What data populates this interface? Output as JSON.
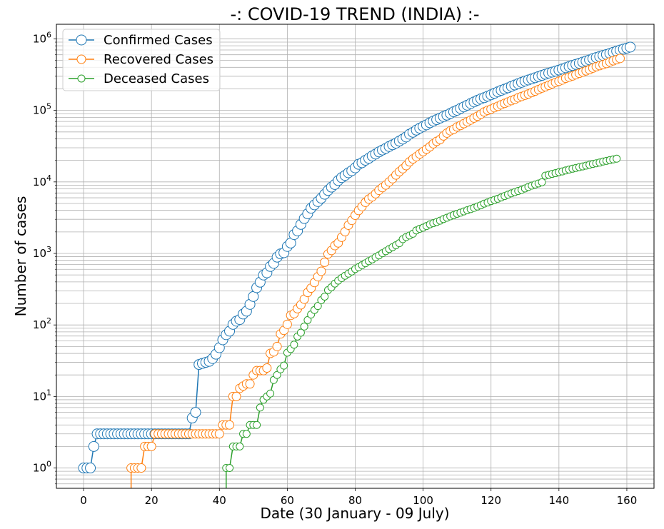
{
  "chart_data": {
    "type": "line",
    "title": "-: COVID-19 TREND (INDIA) :-",
    "xlabel": "Date (30 January - 09 July)",
    "ylabel": "Number of cases",
    "xlim": [
      -8,
      168
    ],
    "ylim": [
      0.52,
      1600000
    ],
    "yscale": "log",
    "grid": true,
    "grid_minor": true,
    "legend_position": "top-left",
    "x_ticks": [
      0,
      20,
      40,
      60,
      80,
      100,
      120,
      140,
      160
    ],
    "y_ticks": [
      {
        "value": 1,
        "label": "10^0"
      },
      {
        "value": 10,
        "label": "10^1"
      },
      {
        "value": 100,
        "label": "10^2"
      },
      {
        "value": 1000,
        "label": "10^3"
      },
      {
        "value": 10000,
        "label": "10^4"
      },
      {
        "value": 100000,
        "label": "10^5"
      },
      {
        "value": 1000000,
        "label": "10^6"
      }
    ],
    "series": [
      {
        "name": "Confirmed Cases",
        "color": "#1f77b4",
        "x_start": 0,
        "values": [
          1,
          1,
          1,
          2,
          3,
          3,
          3,
          3,
          3,
          3,
          3,
          3,
          3,
          3,
          3,
          3,
          3,
          3,
          3,
          3,
          3,
          3,
          3,
          3,
          3,
          3,
          3,
          3,
          3,
          3,
          3,
          3,
          5,
          6,
          28,
          29,
          30,
          31,
          34,
          39,
          48,
          62,
          73,
          82,
          102,
          113,
          119,
          142,
          156,
          194,
          250,
          332,
          396,
          499,
          536,
          657,
          727,
          887,
          987,
          1024,
          1251,
          1397,
          1834,
          2069,
          2547,
          3082,
          3588,
          4289,
          4778,
          5311,
          5916,
          6725,
          7598,
          8446,
          9205,
          10453,
          11487,
          12322,
          13430,
          14352,
          15722,
          17615,
          18539,
          20080,
          21370,
          23077,
          24530,
          26283,
          27890,
          29451,
          31324,
          33062,
          34863,
          37257,
          39699,
          42505,
          46437,
          49400,
          52987,
          56351,
          59695,
          62808,
          67161,
          70768,
          74292,
          78055,
          81997,
          85784,
          90648,
          95698,
          100328,
          106475,
          112028,
          118226,
          124794,
          131423,
          138536,
          144950,
          150793,
          158086,
          165386,
          173491,
          181827,
          190609,
          198370,
          207191,
          216824,
          226713,
          236184,
          246622,
          257486,
          266598,
          276146,
          286605,
          297535,
          308993,
          320922,
          332424,
          343091,
          354065,
          366946,
          380532,
          395048,
          410451,
          425282,
          440215,
          456183,
          473105,
          490401,
          508953,
          528859,
          548318,
          566840,
          585481,
          604641,
          625544,
          648315,
          673165,
          697413,
          719665,
          742417,
          767296
        ]
      },
      {
        "name": "Recovered Cases",
        "color": "#ff7f0e",
        "x_start": 0,
        "values": [
          0,
          0,
          0,
          0,
          0,
          0,
          0,
          0,
          0,
          0,
          0,
          0,
          0,
          0,
          1,
          1,
          1,
          1,
          2,
          2,
          2,
          3,
          3,
          3,
          3,
          3,
          3,
          3,
          3,
          3,
          3,
          3,
          3,
          3,
          3,
          3,
          3,
          3,
          3,
          3,
          3,
          4,
          4,
          4,
          10,
          10,
          13,
          14,
          15,
          15,
          20,
          23,
          23,
          23,
          25,
          40,
          42,
          50,
          75,
          84,
          102,
          136,
          144,
          169,
          191,
          229,
          285,
          327,
          392,
          473,
          563,
          752,
          982,
          1099,
          1286,
          1404,
          1681,
          2014,
          2481,
          2900,
          3420,
          3983,
          4523,
          5176,
          5753,
          6187,
          6834,
          7630,
          8332,
          9063,
          10022,
          11092,
          12489,
          13902,
          15294,
          16891,
          19102,
          20950,
          22547,
          24581,
          26525,
          28648,
          31053,
          34132,
          36920,
          39232,
          43984,
          48151,
          51854,
          54385,
          58727,
          61588,
          65391,
          69328,
          73209,
          78080,
          83007,
          88455,
          95208,
          100300,
          104107,
          109183,
          114114,
          120003,
          125381,
          131150,
          136999,
          142763,
          150152,
          156734,
          162961,
          169799,
          177645,
          186028,
          195173,
          205115,
          214215,
          224366,
          235077,
          246049,
          255542,
          266010,
          281231,
          291675,
          303142,
          316027,
          330281,
          343858,
          356740,
          371526,
          390311,
          408802,
          422679,
          436441,
          453271,
          475375,
          493593,
          512493,
          533025
        ]
      },
      {
        "name": "Deceased Cases",
        "color": "#2ca02c",
        "x_start": 0,
        "values": [
          0,
          0,
          0,
          0,
          0,
          0,
          0,
          0,
          0,
          0,
          0,
          0,
          0,
          0,
          0,
          0,
          0,
          0,
          0,
          0,
          0,
          0,
          0,
          0,
          0,
          0,
          0,
          0,
          0,
          0,
          0,
          0,
          0,
          0,
          0,
          0,
          0,
          0,
          0,
          0,
          0,
          0,
          1,
          1,
          2,
          2,
          2,
          3,
          3,
          4,
          4,
          4,
          7,
          9,
          10,
          11,
          17,
          20,
          24,
          27,
          41,
          46,
          53,
          69,
          78,
          95,
          117,
          140,
          162,
          184,
          222,
          249,
          307,
          337,
          379,
          417,
          452,
          488,
          522,
          559,
          605,
          642,
          686,
          730,
          780,
          825,
          884,
          939,
          1008,
          1075,
          1152,
          1223,
          1304,
          1390,
          1583,
          1695,
          1783,
          1886,
          2101,
          2212,
          2294,
          2415,
          2551,
          2649,
          2753,
          2871,
          3025,
          3156,
          3302,
          3435,
          3583,
          3720,
          3867,
          4021,
          4167,
          4337,
          4531,
          4706,
          4971,
          5164,
          5394,
          5598,
          5815,
          6075,
          6348,
          6642,
          6929,
          7207,
          7473,
          7745,
          8102,
          8498,
          8884,
          9195,
          9520,
          9900,
          12237,
          12573,
          12948,
          13254,
          13699,
          14011,
          14476,
          14894,
          15301,
          15685,
          16095,
          16475,
          16893,
          17400,
          17834,
          18213,
          18655,
          19268,
          19693,
          20160,
          20642,
          21129
        ]
      }
    ]
  }
}
